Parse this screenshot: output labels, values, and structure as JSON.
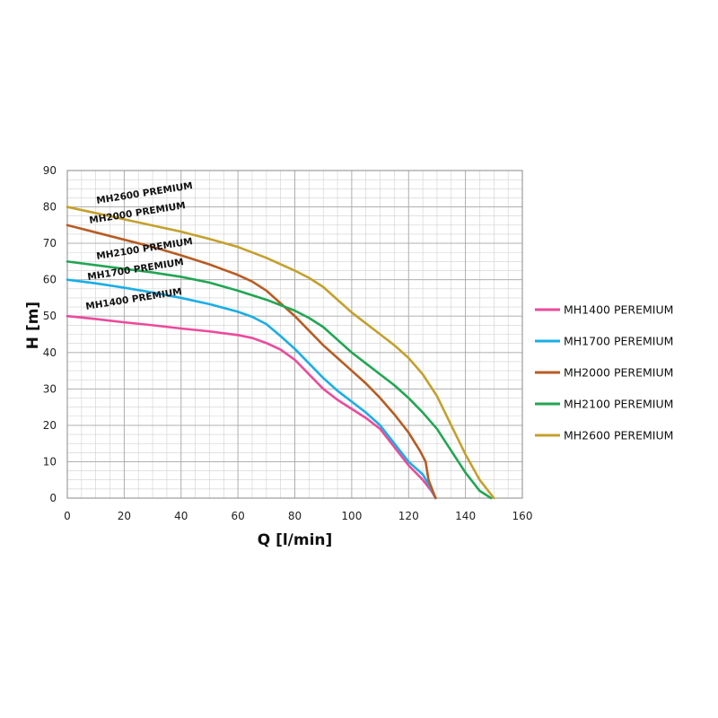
{
  "chart_data": {
    "type": "line",
    "xlabel": "Q [l/min]",
    "ylabel": "H [m]",
    "xlim": [
      0,
      160
    ],
    "ylim": [
      0,
      90
    ],
    "xticks": [
      "0",
      "20",
      "40",
      "60",
      "80",
      "100",
      "120",
      "140",
      "160"
    ],
    "yticks": [
      "0",
      "10",
      "20",
      "30",
      "40",
      "50",
      "60",
      "70",
      "80",
      "90"
    ],
    "grid": true,
    "minor_grid_x_step": 5,
    "minor_grid_y_step": 2.5,
    "legend_position": "right",
    "series": [
      {
        "name": "MH1400 PEREMIUM",
        "curve_label": "MH1400 PREMIUM",
        "color": "#ec4a9b",
        "points": [
          [
            0,
            50
          ],
          [
            10,
            49.2
          ],
          [
            20,
            48.3
          ],
          [
            30,
            47.5
          ],
          [
            40,
            46.6
          ],
          [
            50,
            45.8
          ],
          [
            60,
            44.8
          ],
          [
            65,
            44
          ],
          [
            70,
            42.6
          ],
          [
            75,
            40.8
          ],
          [
            80,
            38
          ],
          [
            85,
            34
          ],
          [
            90,
            30
          ],
          [
            95,
            27
          ],
          [
            100,
            24.5
          ],
          [
            105,
            22
          ],
          [
            110,
            19
          ],
          [
            115,
            14
          ],
          [
            120,
            9
          ],
          [
            125,
            5
          ],
          [
            128,
            2
          ],
          [
            129.5,
            0
          ]
        ]
      },
      {
        "name": "MH1700 PEREMIUM",
        "curve_label": "MH1700 PREMIUM",
        "color": "#1aaee6",
        "points": [
          [
            0,
            60
          ],
          [
            10,
            59
          ],
          [
            20,
            57.8
          ],
          [
            30,
            56.5
          ],
          [
            40,
            55
          ],
          [
            50,
            53.3
          ],
          [
            60,
            51.2
          ],
          [
            65,
            49.8
          ],
          [
            70,
            47.8
          ],
          [
            75,
            44.5
          ],
          [
            80,
            41
          ],
          [
            85,
            37
          ],
          [
            90,
            33
          ],
          [
            95,
            29.5
          ],
          [
            100,
            26.5
          ],
          [
            105,
            23.5
          ],
          [
            110,
            20
          ],
          [
            115,
            15
          ],
          [
            120,
            10
          ],
          [
            125,
            6.5
          ],
          [
            128,
            2.5
          ],
          [
            129.5,
            0
          ]
        ]
      },
      {
        "name": "MH2000 PEREMIUM",
        "curve_label": "MH2000 PREMIUM",
        "color": "#b85c22",
        "points": [
          [
            0,
            75
          ],
          [
            10,
            73
          ],
          [
            20,
            71
          ],
          [
            30,
            69
          ],
          [
            40,
            66.7
          ],
          [
            50,
            64.2
          ],
          [
            60,
            61.3
          ],
          [
            65,
            59.5
          ],
          [
            70,
            57
          ],
          [
            75,
            53.5
          ],
          [
            80,
            50
          ],
          [
            85,
            46
          ],
          [
            90,
            42
          ],
          [
            95,
            38.5
          ],
          [
            100,
            35
          ],
          [
            105,
            31.5
          ],
          [
            110,
            27.5
          ],
          [
            115,
            23
          ],
          [
            120,
            18
          ],
          [
            124,
            13
          ],
          [
            126,
            10
          ],
          [
            127,
            5
          ],
          [
            128.5,
            2
          ],
          [
            129.5,
            0
          ]
        ]
      },
      {
        "name": "MH2100 PEREMIUM",
        "curve_label": "MH2100 PREMIUM",
        "color": "#21a653",
        "points": [
          [
            0,
            65
          ],
          [
            10,
            64
          ],
          [
            20,
            63
          ],
          [
            30,
            62
          ],
          [
            40,
            60.8
          ],
          [
            50,
            59.2
          ],
          [
            60,
            57
          ],
          [
            70,
            54.5
          ],
          [
            80,
            51.5
          ],
          [
            85,
            49.5
          ],
          [
            90,
            47
          ],
          [
            95,
            43.5
          ],
          [
            100,
            40
          ],
          [
            105,
            37
          ],
          [
            110,
            34
          ],
          [
            115,
            31
          ],
          [
            120,
            27.5
          ],
          [
            125,
            23.5
          ],
          [
            130,
            19
          ],
          [
            135,
            13
          ],
          [
            140,
            7
          ],
          [
            145,
            2
          ],
          [
            149,
            0
          ]
        ]
      },
      {
        "name": "MH2600 PEREMIUM",
        "curve_label": "MH2600 PREMIUM",
        "color": "#c4a02c",
        "points": [
          [
            0,
            80
          ],
          [
            10,
            78.3
          ],
          [
            20,
            76.6
          ],
          [
            30,
            74.9
          ],
          [
            40,
            73.2
          ],
          [
            50,
            71.2
          ],
          [
            60,
            69
          ],
          [
            70,
            66
          ],
          [
            80,
            62.5
          ],
          [
            85,
            60.5
          ],
          [
            90,
            58
          ],
          [
            95,
            54.5
          ],
          [
            100,
            51
          ],
          [
            105,
            48
          ],
          [
            110,
            45
          ],
          [
            115,
            42
          ],
          [
            120,
            38.5
          ],
          [
            125,
            34
          ],
          [
            130,
            28
          ],
          [
            135,
            20
          ],
          [
            140,
            12
          ],
          [
            145,
            5
          ],
          [
            150,
            0
          ]
        ]
      }
    ]
  }
}
